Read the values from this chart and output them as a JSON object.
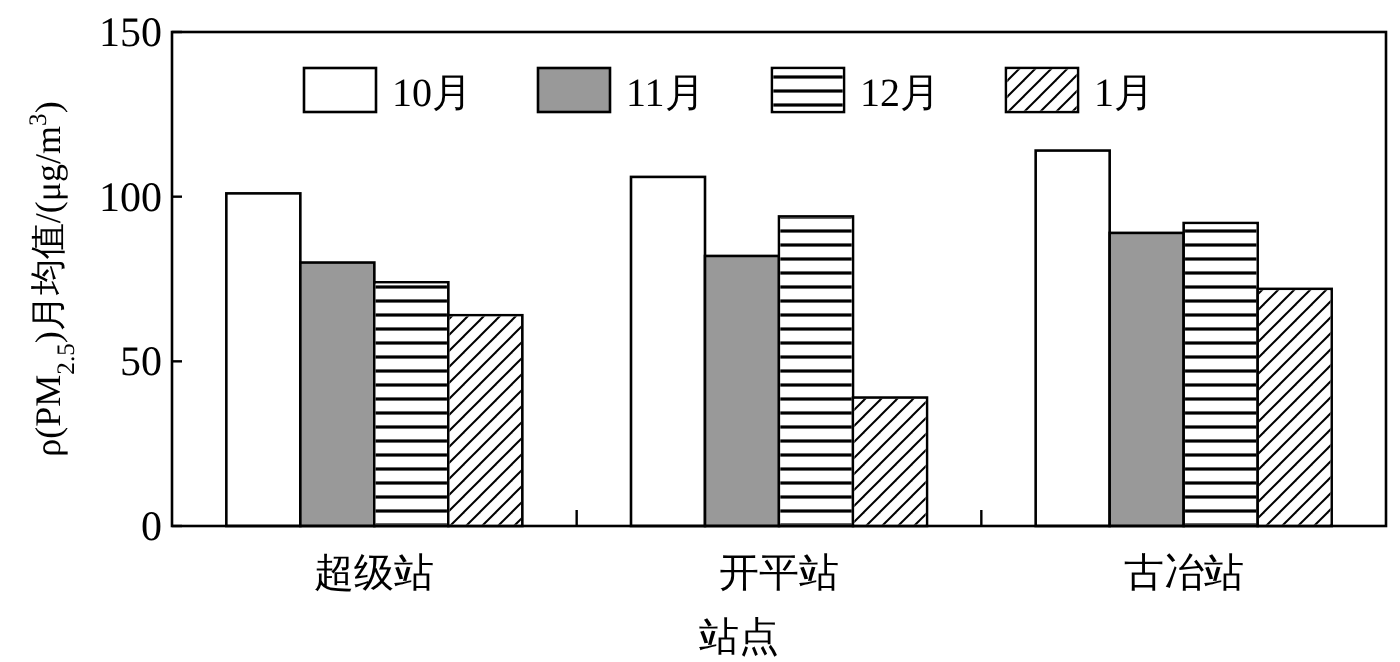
{
  "chart_data": {
    "type": "bar",
    "xlabel": "站点",
    "ylabel": "ρ(PM$_{2.5}$)月均值/(μg/m$^{3}$)",
    "categories": [
      "超级站",
      "开平站",
      "古冶站"
    ],
    "ylim": [
      0,
      150
    ],
    "yticks": [
      0,
      50,
      100,
      150
    ],
    "legend": "top",
    "series": [
      {
        "name": "10月",
        "color": "#ffffff",
        "values": [
          101,
          106,
          114
        ]
      },
      {
        "name": "11月",
        "color": "#999999",
        "values": [
          80,
          82,
          89
        ]
      },
      {
        "name": "12月",
        "color": "#ffffff",
        "values": [
          74,
          94,
          92
        ]
      },
      {
        "name": "1月",
        "color": "#ffffff",
        "values": [
          64,
          39,
          72
        ]
      }
    ]
  }
}
